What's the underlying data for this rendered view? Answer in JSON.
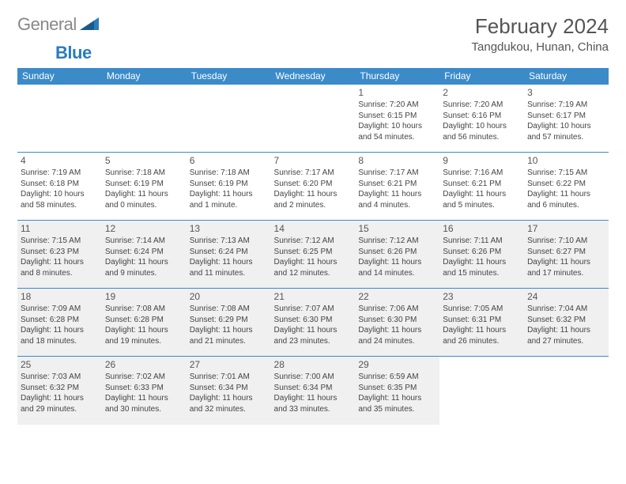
{
  "logo": {
    "word1": "General",
    "word2": "Blue"
  },
  "title": "February 2024",
  "location": "Tangdukou, Hunan, China",
  "colors": {
    "headerBg": "#3b8bc9",
    "headerText": "#ffffff",
    "rowBorder": "#3b8bc9",
    "shadeBg": "#f0f0f0",
    "bodyText": "#444444",
    "logoGray": "#888888",
    "logoBlue": "#2b7bbd"
  },
  "daysOfWeek": [
    "Sunday",
    "Monday",
    "Tuesday",
    "Wednesday",
    "Thursday",
    "Friday",
    "Saturday"
  ],
  "weeks": [
    [
      {
        "blank": true
      },
      {
        "blank": true
      },
      {
        "blank": true
      },
      {
        "blank": true
      },
      {
        "n": "1",
        "sr": "7:20 AM",
        "ss": "6:15 PM",
        "dl": "10 hours and 54 minutes."
      },
      {
        "n": "2",
        "sr": "7:20 AM",
        "ss": "6:16 PM",
        "dl": "10 hours and 56 minutes."
      },
      {
        "n": "3",
        "sr": "7:19 AM",
        "ss": "6:17 PM",
        "dl": "10 hours and 57 minutes."
      }
    ],
    [
      {
        "n": "4",
        "sr": "7:19 AM",
        "ss": "6:18 PM",
        "dl": "10 hours and 58 minutes."
      },
      {
        "n": "5",
        "sr": "7:18 AM",
        "ss": "6:19 PM",
        "dl": "11 hours and 0 minutes."
      },
      {
        "n": "6",
        "sr": "7:18 AM",
        "ss": "6:19 PM",
        "dl": "11 hours and 1 minute."
      },
      {
        "n": "7",
        "sr": "7:17 AM",
        "ss": "6:20 PM",
        "dl": "11 hours and 2 minutes."
      },
      {
        "n": "8",
        "sr": "7:17 AM",
        "ss": "6:21 PM",
        "dl": "11 hours and 4 minutes."
      },
      {
        "n": "9",
        "sr": "7:16 AM",
        "ss": "6:21 PM",
        "dl": "11 hours and 5 minutes."
      },
      {
        "n": "10",
        "sr": "7:15 AM",
        "ss": "6:22 PM",
        "dl": "11 hours and 6 minutes."
      }
    ],
    [
      {
        "n": "11",
        "sr": "7:15 AM",
        "ss": "6:23 PM",
        "dl": "11 hours and 8 minutes.",
        "shade": true
      },
      {
        "n": "12",
        "sr": "7:14 AM",
        "ss": "6:24 PM",
        "dl": "11 hours and 9 minutes.",
        "shade": true
      },
      {
        "n": "13",
        "sr": "7:13 AM",
        "ss": "6:24 PM",
        "dl": "11 hours and 11 minutes.",
        "shade": true
      },
      {
        "n": "14",
        "sr": "7:12 AM",
        "ss": "6:25 PM",
        "dl": "11 hours and 12 minutes.",
        "shade": true
      },
      {
        "n": "15",
        "sr": "7:12 AM",
        "ss": "6:26 PM",
        "dl": "11 hours and 14 minutes.",
        "shade": true
      },
      {
        "n": "16",
        "sr": "7:11 AM",
        "ss": "6:26 PM",
        "dl": "11 hours and 15 minutes.",
        "shade": true
      },
      {
        "n": "17",
        "sr": "7:10 AM",
        "ss": "6:27 PM",
        "dl": "11 hours and 17 minutes.",
        "shade": true
      }
    ],
    [
      {
        "n": "18",
        "sr": "7:09 AM",
        "ss": "6:28 PM",
        "dl": "11 hours and 18 minutes.",
        "shade": true
      },
      {
        "n": "19",
        "sr": "7:08 AM",
        "ss": "6:28 PM",
        "dl": "11 hours and 19 minutes.",
        "shade": true
      },
      {
        "n": "20",
        "sr": "7:08 AM",
        "ss": "6:29 PM",
        "dl": "11 hours and 21 minutes.",
        "shade": true
      },
      {
        "n": "21",
        "sr": "7:07 AM",
        "ss": "6:30 PM",
        "dl": "11 hours and 23 minutes.",
        "shade": true
      },
      {
        "n": "22",
        "sr": "7:06 AM",
        "ss": "6:30 PM",
        "dl": "11 hours and 24 minutes.",
        "shade": true
      },
      {
        "n": "23",
        "sr": "7:05 AM",
        "ss": "6:31 PM",
        "dl": "11 hours and 26 minutes.",
        "shade": true
      },
      {
        "n": "24",
        "sr": "7:04 AM",
        "ss": "6:32 PM",
        "dl": "11 hours and 27 minutes.",
        "shade": true
      }
    ],
    [
      {
        "n": "25",
        "sr": "7:03 AM",
        "ss": "6:32 PM",
        "dl": "11 hours and 29 minutes.",
        "shade": true
      },
      {
        "n": "26",
        "sr": "7:02 AM",
        "ss": "6:33 PM",
        "dl": "11 hours and 30 minutes.",
        "shade": true
      },
      {
        "n": "27",
        "sr": "7:01 AM",
        "ss": "6:34 PM",
        "dl": "11 hours and 32 minutes.",
        "shade": true
      },
      {
        "n": "28",
        "sr": "7:00 AM",
        "ss": "6:34 PM",
        "dl": "11 hours and 33 minutes.",
        "shade": true
      },
      {
        "n": "29",
        "sr": "6:59 AM",
        "ss": "6:35 PM",
        "dl": "11 hours and 35 minutes.",
        "shade": true
      },
      {
        "blank": true
      },
      {
        "blank": true
      }
    ]
  ],
  "labels": {
    "sunrise": "Sunrise:",
    "sunset": "Sunset:",
    "daylight": "Daylight:"
  }
}
